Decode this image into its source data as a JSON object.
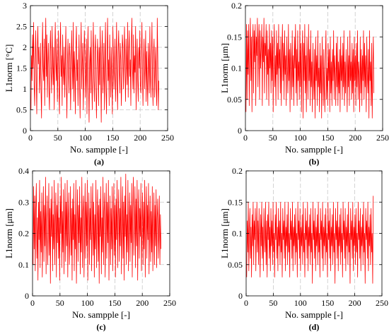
{
  "chart_data": [
    {
      "type": "line",
      "caption": "(a)",
      "xlabel": "No. sampple [-]",
      "ylabel": "L1norm [°C]",
      "xlim": [
        0,
        250
      ],
      "ylim": [
        0,
        3
      ],
      "xticks": [
        0,
        50,
        100,
        150,
        200,
        250
      ],
      "yticks": [
        0,
        0.5,
        1,
        1.5,
        2,
        2.5,
        3
      ],
      "xticklabels": [
        "0",
        "50",
        "100",
        "150",
        "200",
        "250"
      ],
      "yticklabels": [
        "0",
        "0.5",
        "1",
        "1.5",
        "2",
        "2.5",
        "3"
      ],
      "grid": true,
      "color": "#ff0000",
      "series": [
        {
          "values": [
            0.5,
            1.8,
            1.2,
            2.3,
            1.5,
            2.6,
            1.1,
            0.6,
            1.7,
            2.4,
            1.3,
            0.4,
            1.9,
            2.5,
            1.6,
            2.0,
            0.9,
            1.4,
            2.1,
            1.0,
            0.3,
            1.7,
            2.6,
            1.5,
            1.2,
            2.2,
            0.6,
            1.8,
            2.7,
            1.3,
            2.3,
            0.8,
            1.6,
            2.1,
            1.0,
            0.5,
            1.9,
            2.4,
            1.4,
            0.9,
            2.5,
            1.7,
            1.1,
            2.0,
            0.5,
            1.8,
            2.6,
            1.6,
            1.2,
            2.2,
            0.7,
            1.5,
            2.4,
            1.0,
            0.4,
            1.9,
            2.6,
            1.3,
            1.8,
            0.6,
            2.3,
            1.5,
            1.1,
            2.0,
            0.8,
            1.7,
            2.5,
            1.2,
            0.3,
            1.6,
            2.2,
            1.4,
            0.9,
            2.1,
            1.8,
            0.5,
            1.3,
            2.4,
            1.6,
            1.0,
            2.6,
            0.7,
            1.9,
            1.4,
            0.4,
            2.0,
            2.5,
            1.2,
            1.7,
            0.6,
            1.5,
            2.3,
            1.1,
            0.3,
            1.8,
            2.6,
            1.0,
            1.6,
            2.1,
            0.5,
            1.3,
            2.4,
            1.9,
            0.8,
            1.4,
            2.2,
            0.4,
            1.7,
            2.5,
            1.1,
            0.2,
            1.6,
            2.0,
            0.9,
            2.4,
            1.3,
            0.5,
            1.8,
            2.6,
            1.2,
            0.7,
            1.9,
            2.3,
            1.0,
            0.3,
            1.5,
            2.2,
            1.7,
            0.6,
            2.0,
            1.1,
            2.5,
            1.4,
            0.2,
            1.8,
            2.4,
            0.9,
            1.3,
            2.1,
            0.5,
            1.6,
            2.6,
            1.0,
            0.4,
            1.9,
            2.7,
            1.2,
            1.7,
            0.6,
            2.3,
            1.5,
            0.8,
            2.0,
            1.3,
            0.4,
            2.5,
            1.8,
            1.0,
            1.6,
            2.2,
            0.7,
            1.4,
            2.6,
            1.1,
            0.5,
            1.9,
            2.4,
            1.5,
            0.9,
            2.1,
            1.7,
            0.6,
            1.3,
            2.3,
            2.0,
            1.0,
            1.8,
            2.5,
            1.4,
            0.7,
            2.2,
            1.6,
            1.1,
            2.6,
            0.8,
            1.9,
            2.4,
            1.3,
            1.7,
            0.6,
            2.1,
            2.7,
            1.5,
            1.0,
            2.3,
            0.9,
            1.8,
            1.4,
            2.5,
            0.5,
            1.6,
            2.2,
            1.2,
            0.7,
            2.0,
            1.5,
            2.4,
            1.1,
            0.9,
            1.8,
            2.6,
            1.3,
            0.6,
            1.7,
            2.2,
            1.0,
            1.5,
            2.4,
            0.7,
            1.9,
            1.2,
            0.6,
            2.1,
            1.6,
            0.9,
            2.5,
            1.4,
            0.8,
            1.8,
            2.6,
            1.1,
            0.6,
            1.9,
            2.2,
            0.8,
            1.5,
            2.0,
            1.0,
            0.6,
            2.7,
            1.8,
            0.5,
            1.2
          ]
        }
      ]
    },
    {
      "type": "line",
      "caption": "(b)",
      "xlabel": "No. sampple [-]",
      "ylabel": "L1norm [μm]",
      "xlim": [
        0,
        250
      ],
      "ylim": [
        0,
        0.2
      ],
      "xticks": [
        0,
        50,
        100,
        150,
        200,
        250
      ],
      "yticks": [
        0,
        0.05,
        0.1,
        0.15,
        0.2
      ],
      "xticklabels": [
        "0",
        "50",
        "100",
        "150",
        "200",
        "250"
      ],
      "yticklabels": [
        "0",
        "0.05",
        "0.1",
        "0.15",
        "0.2"
      ],
      "grid": true,
      "color": "#ff0000",
      "series": [
        {
          "values": [
            0.03,
            0.17,
            0.05,
            0.16,
            0.09,
            0.17,
            0.04,
            0.13,
            0.18,
            0.08,
            0.15,
            0.03,
            0.14,
            0.17,
            0.06,
            0.16,
            0.11,
            0.17,
            0.04,
            0.15,
            0.12,
            0.18,
            0.07,
            0.14,
            0.17,
            0.05,
            0.16,
            0.1,
            0.13,
            0.17,
            0.04,
            0.15,
            0.11,
            0.18,
            0.06,
            0.14,
            0.12,
            0.17,
            0.05,
            0.16,
            0.09,
            0.13,
            0.04,
            0.17,
            0.1,
            0.14,
            0.06,
            0.16,
            0.08,
            0.15,
            0.03,
            0.13,
            0.17,
            0.07,
            0.12,
            0.04,
            0.16,
            0.09,
            0.14,
            0.05,
            0.17,
            0.1,
            0.13,
            0.06,
            0.15,
            0.04,
            0.12,
            0.17,
            0.08,
            0.14,
            0.05,
            0.16,
            0.09,
            0.12,
            0.04,
            0.15,
            0.1,
            0.06,
            0.17,
            0.08,
            0.13,
            0.03,
            0.14,
            0.11,
            0.05,
            0.16,
            0.07,
            0.12,
            0.04,
            0.15,
            0.1,
            0.17,
            0.06,
            0.13,
            0.04,
            0.16,
            0.08,
            0.11,
            0.05,
            0.17,
            0.07,
            0.14,
            0.03,
            0.12,
            0.16,
            0.02,
            0.14,
            0.08,
            0.17,
            0.06,
            0.12,
            0.03,
            0.15,
            0.1,
            0.05,
            0.17,
            0.08,
            0.13,
            0.04,
            0.16,
            0.07,
            0.11,
            0.03,
            0.14,
            0.09,
            0.05,
            0.13,
            0.02,
            0.15,
            0.08,
            0.12,
            0.04,
            0.16,
            0.07,
            0.1,
            0.03,
            0.14,
            0.06,
            0.12,
            0.02,
            0.15,
            0.09,
            0.04,
            0.13,
            0.07,
            0.03,
            0.12,
            0.16,
            0.05,
            0.1,
            0.04,
            0.14,
            0.08,
            0.13,
            0.03,
            0.15,
            0.06,
            0.11,
            0.04,
            0.13,
            0.08,
            0.16,
            0.05,
            0.12,
            0.09,
            0.04,
            0.14,
            0.07,
            0.15,
            0.04,
            0.11,
            0.06,
            0.13,
            0.03,
            0.15,
            0.08,
            0.12,
            0.05,
            0.14,
            0.07,
            0.16,
            0.04,
            0.11,
            0.06,
            0.13,
            0.09,
            0.03,
            0.15,
            0.07,
            0.12,
            0.04,
            0.16,
            0.08,
            0.11,
            0.05,
            0.14,
            0.06,
            0.13,
            0.03,
            0.15,
            0.08,
            0.12,
            0.04,
            0.14,
            0.07,
            0.16,
            0.05,
            0.11,
            0.09,
            0.03,
            0.15,
            0.06,
            0.13,
            0.04,
            0.12,
            0.08,
            0.16,
            0.05,
            0.14,
            0.07,
            0.12,
            0.03,
            0.15,
            0.09,
            0.06,
            0.13,
            0.02,
            0.16,
            0.08,
            0.11,
            0.04,
            0.14,
            0.02,
            0.1,
            0.15,
            0.06
          ]
        }
      ]
    },
    {
      "type": "line",
      "caption": "(c)",
      "xlabel": "No. sampple [-]",
      "ylabel": "L1norm [μm]",
      "xlim": [
        0,
        250
      ],
      "ylim": [
        0,
        0.4
      ],
      "xticks": [
        0,
        50,
        100,
        150,
        200,
        250
      ],
      "yticks": [
        0,
        0.1,
        0.2,
        0.3,
        0.4
      ],
      "xticklabels": [
        "0",
        "50",
        "100",
        "150",
        "200",
        "250"
      ],
      "yticklabels": [
        "0",
        "0.1",
        "0.2",
        "0.3",
        "0.4"
      ],
      "grid": true,
      "color": "#ff0000",
      "series": [
        {
          "values": [
            0.1,
            0.35,
            0.15,
            0.32,
            0.08,
            0.28,
            0.36,
            0.12,
            0.25,
            0.05,
            0.3,
            0.18,
            0.37,
            0.09,
            0.27,
            0.14,
            0.33,
            0.06,
            0.22,
            0.35,
            0.11,
            0.29,
            0.16,
            0.38,
            0.07,
            0.24,
            0.32,
            0.1,
            0.2,
            0.36,
            0.13,
            0.28,
            0.04,
            0.31,
            0.19,
            0.35,
            0.08,
            0.26,
            0.15,
            0.37,
            0.1,
            0.23,
            0.33,
            0.06,
            0.29,
            0.17,
            0.36,
            0.12,
            0.25,
            0.05,
            0.32,
            0.2,
            0.38,
            0.09,
            0.27,
            0.14,
            0.34,
            0.07,
            0.22,
            0.36,
            0.11,
            0.3,
            0.16,
            0.37,
            0.06,
            0.24,
            0.33,
            0.1,
            0.19,
            0.35,
            0.13,
            0.28,
            0.05,
            0.31,
            0.18,
            0.36,
            0.08,
            0.26,
            0.15,
            0.37,
            0.04,
            0.23,
            0.34,
            0.11,
            0.29,
            0.17,
            0.35,
            0.07,
            0.25,
            0.14,
            0.38,
            0.09,
            0.27,
            0.32,
            0.06,
            0.21,
            0.36,
            0.12,
            0.3,
            0.16,
            0.37,
            0.05,
            0.24,
            0.33,
            0.1,
            0.28,
            0.18,
            0.35,
            0.08,
            0.22,
            0.36,
            0.13,
            0.3,
            0.06,
            0.26,
            0.15,
            0.37,
            0.09,
            0.23,
            0.34,
            0.11,
            0.29,
            0.04,
            0.31,
            0.19,
            0.35,
            0.07,
            0.25,
            0.14,
            0.38,
            0.1,
            0.27,
            0.33,
            0.06,
            0.2,
            0.36,
            0.12,
            0.3,
            0.17,
            0.37,
            0.05,
            0.24,
            0.32,
            0.1,
            0.28,
            0.15,
            0.35,
            0.08,
            0.22,
            0.36,
            0.13,
            0.29,
            0.06,
            0.31,
            0.18,
            0.37,
            0.09,
            0.25,
            0.34,
            0.11,
            0.28,
            0.16,
            0.38,
            0.07,
            0.23,
            0.35,
            0.12,
            0.3,
            0.05,
            0.32,
            0.19,
            0.39,
            0.1,
            0.26,
            0.14,
            0.37,
            0.08,
            0.24,
            0.33,
            0.11,
            0.29,
            0.17,
            0.36,
            0.06,
            0.27,
            0.38,
            0.13,
            0.22,
            0.35,
            0.09,
            0.31,
            0.16,
            0.37,
            0.05,
            0.25,
            0.34,
            0.12,
            0.28,
            0.19,
            0.36,
            0.08,
            0.23,
            0.33,
            0.1,
            0.3,
            0.15,
            0.37,
            0.06,
            0.26,
            0.35,
            0.12,
            0.29,
            0.18,
            0.36,
            0.07,
            0.24,
            0.32,
            0.11,
            0.27,
            0.14,
            0.35,
            0.08,
            0.22,
            0.33,
            0.1,
            0.29,
            0.16,
            0.34,
            0.09,
            0.25,
            0.31,
            0.12,
            0.2,
            0.32,
            0.1,
            0.26,
            0.15
          ]
        }
      ]
    },
    {
      "type": "line",
      "caption": "(d)",
      "xlabel": "No. sampple [-]",
      "ylabel": "L1norm [μm]",
      "xlim": [
        0,
        250
      ],
      "ylim": [
        0,
        0.2
      ],
      "xticks": [
        0,
        50,
        100,
        150,
        200,
        250
      ],
      "yticks": [
        0,
        0.05,
        0.1,
        0.15,
        0.2
      ],
      "xticklabels": [
        "0",
        "50",
        "100",
        "150",
        "200",
        "250"
      ],
      "yticklabels": [
        "0",
        "0.05",
        "0.1",
        "0.15",
        "0.2"
      ],
      "grid": true,
      "color": "#ff0000",
      "series": [
        {
          "values": [
            0.03,
            0.12,
            0.07,
            0.15,
            0.04,
            0.1,
            0.14,
            0.06,
            0.11,
            0.03,
            0.13,
            0.08,
            0.15,
            0.05,
            0.12,
            0.09,
            0.14,
            0.04,
            0.1,
            0.15,
            0.07,
            0.12,
            0.05,
            0.14,
            0.09,
            0.03,
            0.13,
            0.08,
            0.15,
            0.06,
            0.11,
            0.04,
            0.14,
            0.1,
            0.07,
            0.15,
            0.05,
            0.12,
            0.03,
            0.13,
            0.09,
            0.15,
            0.06,
            0.11,
            0.04,
            0.14,
            0.08,
            0.12,
            0.05,
            0.15,
            0.07,
            0.1,
            0.03,
            0.13,
            0.09,
            0.15,
            0.06,
            0.11,
            0.04,
            0.14,
            0.08,
            0.12,
            0.05,
            0.15,
            0.07,
            0.1,
            0.03,
            0.14,
            0.09,
            0.12,
            0.06,
            0.15,
            0.04,
            0.11,
            0.08,
            0.13,
            0.05,
            0.15,
            0.07,
            0.1,
            0.03,
            0.14,
            0.09,
            0.12,
            0.06,
            0.15,
            0.04,
            0.11,
            0.08,
            0.13,
            0.05,
            0.14,
            0.07,
            0.1,
            0.03,
            0.15,
            0.09,
            0.12,
            0.06,
            0.14,
            0.04,
            0.11,
            0.08,
            0.13,
            0.05,
            0.15,
            0.07,
            0.1,
            0.03,
            0.14,
            0.09,
            0.12,
            0.06,
            0.15,
            0.04,
            0.11,
            0.08,
            0.13,
            0.05,
            0.14,
            0.07,
            0.1,
            0.02,
            0.15,
            0.09,
            0.12,
            0.06,
            0.14,
            0.04,
            0.11,
            0.08,
            0.13,
            0.05,
            0.15,
            0.07,
            0.1,
            0.03,
            0.14,
            0.09,
            0.12,
            0.06,
            0.15,
            0.04,
            0.11,
            0.08,
            0.13,
            0.05,
            0.14,
            0.07,
            0.1,
            0.03,
            0.15,
            0.09,
            0.12,
            0.06,
            0.14,
            0.04,
            0.11,
            0.08,
            0.13,
            0.05,
            0.15,
            0.07,
            0.1,
            0.02,
            0.14,
            0.09,
            0.12,
            0.06,
            0.15,
            0.04,
            0.11,
            0.08,
            0.13,
            0.05,
            0.14,
            0.07,
            0.1,
            0.03,
            0.15,
            0.09,
            0.12,
            0.06,
            0.14,
            0.04,
            0.11,
            0.08,
            0.13,
            0.05,
            0.15,
            0.07,
            0.1,
            0.02,
            0.14,
            0.09,
            0.12,
            0.06,
            0.15,
            0.04,
            0.11,
            0.08,
            0.13,
            0.05,
            0.14,
            0.07,
            0.1,
            0.03,
            0.15,
            0.09,
            0.12,
            0.06,
            0.14,
            0.04,
            0.11,
            0.08,
            0.13,
            0.05,
            0.15,
            0.07,
            0.1,
            0.02,
            0.14,
            0.09,
            0.12,
            0.06,
            0.15,
            0.04,
            0.11,
            0.08,
            0.13,
            0.05,
            0.14,
            0.07,
            0.1,
            0.02,
            0.16
          ]
        }
      ]
    }
  ]
}
